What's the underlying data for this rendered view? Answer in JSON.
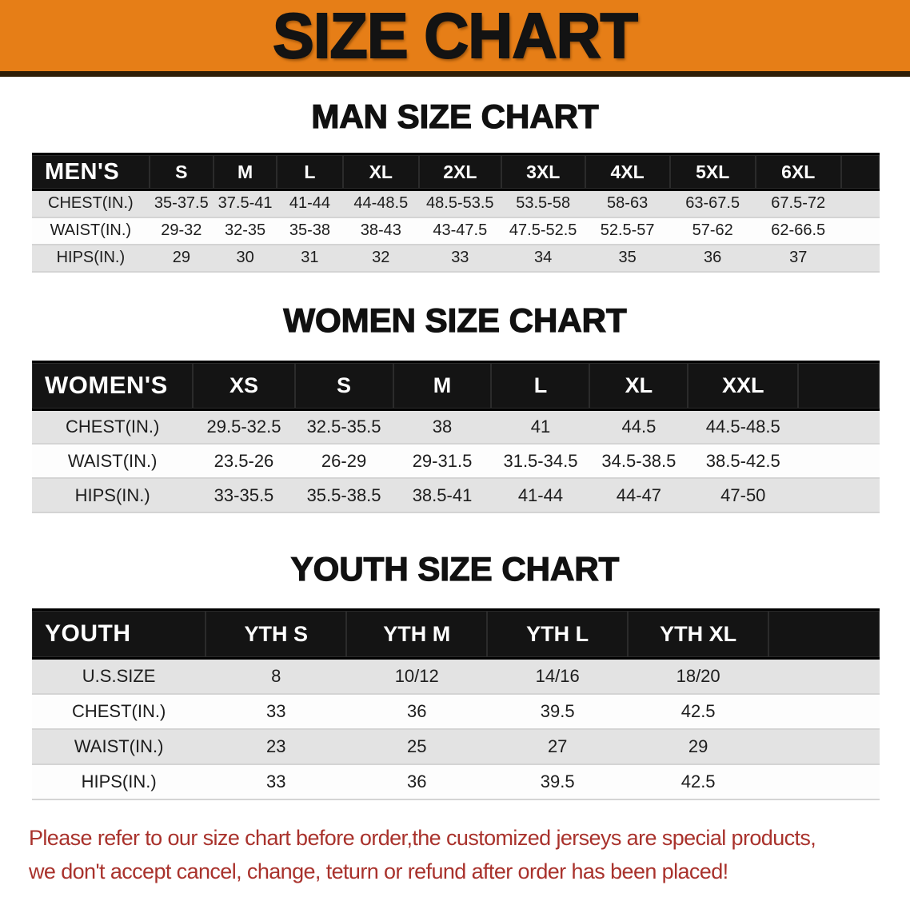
{
  "banner": {
    "title": "SIZE CHART",
    "bg_color": "#E67E17"
  },
  "sections": [
    {
      "heading": "MAN SIZE CHART",
      "corner_label": "MEN'S",
      "sizes": [
        "S",
        "M",
        "L",
        "XL",
        "2XL",
        "3XL",
        "4XL",
        "5XL",
        "6XL"
      ],
      "rows": [
        {
          "label": "CHEST(IN.)",
          "values": [
            "35-37.5",
            "37.5-41",
            "41-44",
            "44-48.5",
            "48.5-53.5",
            "53.5-58",
            "58-63",
            "63-67.5",
            "67.5-72"
          ]
        },
        {
          "label": "WAIST(IN.)",
          "values": [
            "29-32",
            "32-35",
            "35-38",
            "38-43",
            "43-47.5",
            "47.5-52.5",
            "52.5-57",
            "57-62",
            "62-66.5"
          ]
        },
        {
          "label": "HIPS(IN.)",
          "values": [
            "29",
            "30",
            "31",
            "32",
            "33",
            "34",
            "35",
            "36",
            "37"
          ]
        }
      ]
    },
    {
      "heading": "WOMEN SIZE CHART",
      "corner_label": "WOMEN'S",
      "sizes": [
        "XS",
        "S",
        "M",
        "L",
        "XL",
        "XXL"
      ],
      "rows": [
        {
          "label": "CHEST(IN.)",
          "values": [
            "29.5-32.5",
            "32.5-35.5",
            "38",
            "41",
            "44.5",
            "44.5-48.5"
          ]
        },
        {
          "label": "WAIST(IN.)",
          "values": [
            "23.5-26",
            "26-29",
            "29-31.5",
            "31.5-34.5",
            "34.5-38.5",
            "38.5-42.5"
          ]
        },
        {
          "label": "HIPS(IN.)",
          "values": [
            "33-35.5",
            "35.5-38.5",
            "38.5-41",
            "41-44",
            "44-47",
            "47-50"
          ]
        }
      ]
    },
    {
      "heading": "YOUTH SIZE CHART",
      "corner_label": "YOUTH",
      "sizes": [
        "YTH S",
        "YTH M",
        "YTH L",
        "YTH XL"
      ],
      "rows": [
        {
          "label": "U.S.SIZE",
          "values": [
            "8",
            "10/12",
            "14/16",
            "18/20"
          ]
        },
        {
          "label": "CHEST(IN.)",
          "values": [
            "33",
            "36",
            "39.5",
            "42.5"
          ]
        },
        {
          "label": "WAIST(IN.)",
          "values": [
            "23",
            "25",
            "27",
            "29"
          ]
        },
        {
          "label": "HIPS(IN.)",
          "values": [
            "33",
            "36",
            "39.5",
            "42.5"
          ]
        }
      ]
    }
  ],
  "disclaimer": {
    "line1": "Please refer to our size chart before order,the customized jerseys are special products,",
    "line2": "we don't accept cancel, change, teturn or refund after order has been placed!",
    "color": "#A9322C"
  },
  "colors": {
    "banner_bg": "#E67E17",
    "header_bar": "#141414",
    "stripe_gray": "#E3E3E3",
    "disclaimer_red": "#A9322C"
  }
}
